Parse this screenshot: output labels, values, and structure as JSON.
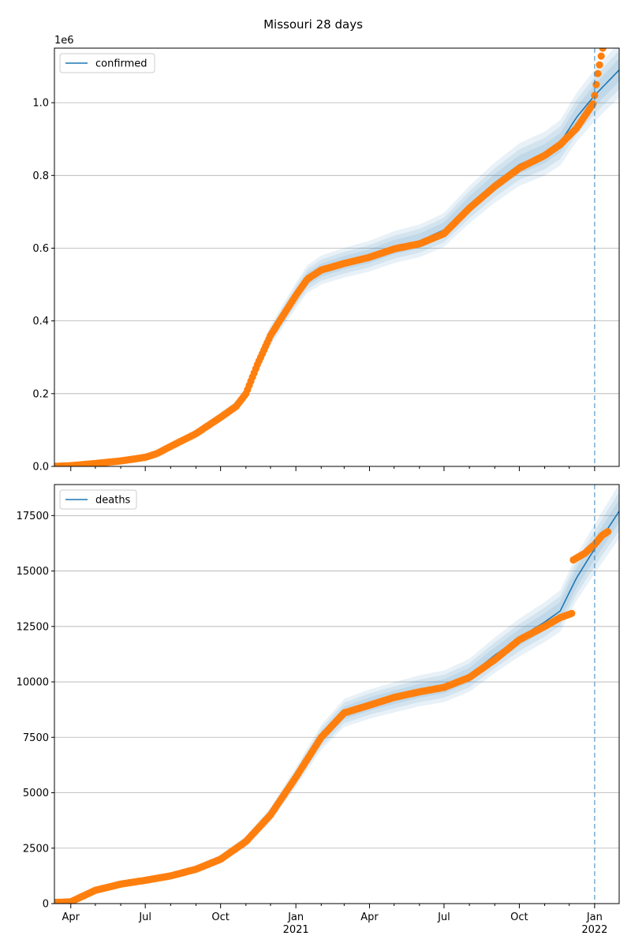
{
  "title": "Missouri 28 days",
  "colors": {
    "model": "#1f77b4",
    "observed": "#ff7f0e",
    "band": "#1f77b4",
    "grid": "#b0b0b0"
  },
  "chart_data": [
    {
      "type": "line",
      "panel": "top",
      "legend": [
        "confirmed"
      ],
      "legend_position": "upper-left",
      "grid": "y",
      "offset_label": "1e6",
      "ylim": [
        0,
        1150000
      ],
      "yticks": [
        0,
        200000,
        400000,
        600000,
        800000,
        1000000
      ],
      "ytick_labels": [
        "0.0",
        "0.2",
        "0.4",
        "0.6",
        "0.8",
        "1.0"
      ],
      "xlim": [
        "2020-03-12",
        "2022-01-31"
      ],
      "forecast_start": "2022-01-01",
      "model": {
        "name": "confirmed",
        "points": [
          [
            "2020-03-12",
            0
          ],
          [
            "2020-04-01",
            2000
          ],
          [
            "2020-05-01",
            10000
          ],
          [
            "2020-06-01",
            15000
          ],
          [
            "2020-07-01",
            25000
          ],
          [
            "2020-07-15",
            35000
          ],
          [
            "2020-08-01",
            55000
          ],
          [
            "2020-09-01",
            90000
          ],
          [
            "2020-10-01",
            135000
          ],
          [
            "2020-10-20",
            165000
          ],
          [
            "2020-11-01",
            200000
          ],
          [
            "2020-11-15",
            280000
          ],
          [
            "2020-12-01",
            360000
          ],
          [
            "2020-12-15",
            410000
          ],
          [
            "2021-01-01",
            470000
          ],
          [
            "2021-01-15",
            515000
          ],
          [
            "2021-02-01",
            540000
          ],
          [
            "2021-03-01",
            560000
          ],
          [
            "2021-04-01",
            578000
          ],
          [
            "2021-05-01",
            603000
          ],
          [
            "2021-06-01",
            620000
          ],
          [
            "2021-07-01",
            650000
          ],
          [
            "2021-08-01",
            720000
          ],
          [
            "2021-09-01",
            780000
          ],
          [
            "2021-10-01",
            830000
          ],
          [
            "2021-11-01",
            860000
          ],
          [
            "2021-11-20",
            890000
          ],
          [
            "2021-12-10",
            960000
          ],
          [
            "2022-01-01",
            1020000
          ],
          [
            "2022-01-31",
            1090000
          ]
        ],
        "band_widths": [
          0.13,
          0.09,
          0.05
        ]
      },
      "observed": {
        "points": [
          [
            "2020-03-12",
            0
          ],
          [
            "2020-04-01",
            2000
          ],
          [
            "2020-05-01",
            8000
          ],
          [
            "2020-06-01",
            15000
          ],
          [
            "2020-07-01",
            25000
          ],
          [
            "2020-07-15",
            35000
          ],
          [
            "2020-08-01",
            55000
          ],
          [
            "2020-09-01",
            90000
          ],
          [
            "2020-10-01",
            135000
          ],
          [
            "2020-10-20",
            165000
          ],
          [
            "2020-11-01",
            200000
          ],
          [
            "2020-11-15",
            280000
          ],
          [
            "2020-12-01",
            360000
          ],
          [
            "2020-12-15",
            410000
          ],
          [
            "2021-01-01",
            470000
          ],
          [
            "2021-01-15",
            515000
          ],
          [
            "2021-02-01",
            540000
          ],
          [
            "2021-03-01",
            558000
          ],
          [
            "2021-04-01",
            575000
          ],
          [
            "2021-05-01",
            598000
          ],
          [
            "2021-06-01",
            612000
          ],
          [
            "2021-07-01",
            640000
          ],
          [
            "2021-08-01",
            710000
          ],
          [
            "2021-09-01",
            770000
          ],
          [
            "2021-10-01",
            820000
          ],
          [
            "2021-11-01",
            855000
          ],
          [
            "2021-11-20",
            885000
          ],
          [
            "2021-12-10",
            930000
          ],
          [
            "2021-12-31",
            1000000
          ],
          [
            "2022-01-01",
            1020000
          ],
          [
            "2022-01-05",
            1080000
          ],
          [
            "2022-01-10",
            1140000
          ],
          [
            "2022-01-12",
            1160000
          ]
        ]
      }
    },
    {
      "type": "line",
      "panel": "bottom",
      "legend": [
        "deaths"
      ],
      "legend_position": "upper-left",
      "grid": "y",
      "ylim": [
        0,
        18900
      ],
      "yticks": [
        0,
        2500,
        5000,
        7500,
        10000,
        12500,
        15000,
        17500
      ],
      "ytick_labels": [
        "0",
        "2500",
        "5000",
        "7500",
        "10000",
        "12500",
        "15000",
        "17500"
      ],
      "xlim": [
        "2020-03-12",
        "2022-01-31"
      ],
      "xticks": [
        {
          "date": "2020-04-01",
          "label": "Apr",
          "sublabel": ""
        },
        {
          "date": "2020-07-01",
          "label": "Jul",
          "sublabel": ""
        },
        {
          "date": "2020-10-01",
          "label": "Oct",
          "sublabel": ""
        },
        {
          "date": "2021-01-01",
          "label": "Jan",
          "sublabel": "2021"
        },
        {
          "date": "2021-04-01",
          "label": "Apr",
          "sublabel": ""
        },
        {
          "date": "2021-07-01",
          "label": "Jul",
          "sublabel": ""
        },
        {
          "date": "2021-10-01",
          "label": "Oct",
          "sublabel": ""
        },
        {
          "date": "2022-01-01",
          "label": "Jan",
          "sublabel": "2022"
        }
      ],
      "forecast_start": "2022-01-01",
      "model": {
        "name": "deaths",
        "points": [
          [
            "2020-03-12",
            50
          ],
          [
            "2020-04-01",
            100
          ],
          [
            "2020-05-01",
            600
          ],
          [
            "2020-06-01",
            900
          ],
          [
            "2020-07-01",
            1050
          ],
          [
            "2020-08-01",
            1250
          ],
          [
            "2020-09-01",
            1550
          ],
          [
            "2020-10-01",
            2000
          ],
          [
            "2020-11-01",
            2800
          ],
          [
            "2020-12-01",
            4000
          ],
          [
            "2021-01-01",
            5700
          ],
          [
            "2021-02-01",
            7500
          ],
          [
            "2021-03-01",
            8600
          ],
          [
            "2021-04-01",
            9000
          ],
          [
            "2021-05-01",
            9300
          ],
          [
            "2021-06-01",
            9600
          ],
          [
            "2021-07-01",
            9800
          ],
          [
            "2021-08-01",
            10300
          ],
          [
            "2021-09-01",
            11200
          ],
          [
            "2021-10-01",
            12000
          ],
          [
            "2021-11-01",
            12700
          ],
          [
            "2021-11-20",
            13200
          ],
          [
            "2021-12-10",
            14700
          ],
          [
            "2022-01-01",
            16000
          ],
          [
            "2022-01-31",
            17700
          ]
        ],
        "band_widths": [
          0.13,
          0.09,
          0.05
        ]
      },
      "observed": {
        "points": [
          [
            "2020-03-12",
            50
          ],
          [
            "2020-04-01",
            80
          ],
          [
            "2020-05-01",
            600
          ],
          [
            "2020-06-01",
            880
          ],
          [
            "2020-07-01",
            1050
          ],
          [
            "2020-08-01",
            1250
          ],
          [
            "2020-09-01",
            1550
          ],
          [
            "2020-10-01",
            2000
          ],
          [
            "2020-11-01",
            2800
          ],
          [
            "2020-12-01",
            4000
          ],
          [
            "2021-01-01",
            5700
          ],
          [
            "2021-02-01",
            7500
          ],
          [
            "2021-03-01",
            8600
          ],
          [
            "2021-04-01",
            8950
          ],
          [
            "2021-05-01",
            9300
          ],
          [
            "2021-06-01",
            9550
          ],
          [
            "2021-07-01",
            9750
          ],
          [
            "2021-08-01",
            10200
          ],
          [
            "2021-09-01",
            11000
          ],
          [
            "2021-10-01",
            11900
          ],
          [
            "2021-11-01",
            12500
          ],
          [
            "2021-11-20",
            12900
          ],
          [
            "2021-12-05",
            13100
          ],
          [
            "2021-12-06",
            15500
          ],
          [
            "2021-12-20",
            15800
          ],
          [
            "2022-01-01",
            16200
          ],
          [
            "2022-01-10",
            16600
          ],
          [
            "2022-01-18",
            16800
          ]
        ]
      }
    }
  ]
}
